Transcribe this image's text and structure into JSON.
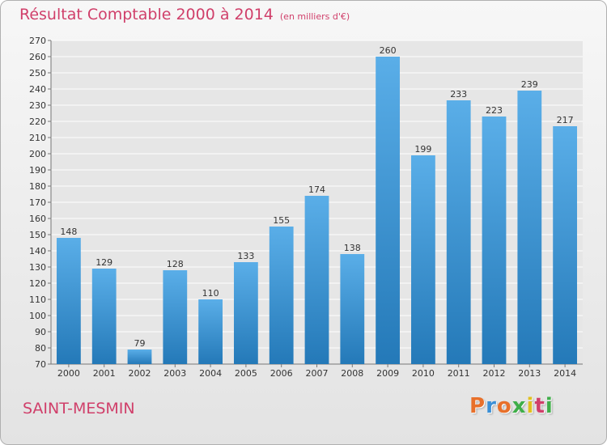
{
  "title": "Résultat Comptable 2000 à 2014",
  "unit": "(en milliers d'€)",
  "commune": "SAINT-MESMIN",
  "logo_text": "Proxiti",
  "colors": {
    "title": "#d03f6a",
    "bar_light": "#5aaee8",
    "bar_dark": "#2479b8"
  },
  "chart_data": {
    "type": "bar",
    "title": "Résultat Comptable 2000 à 2014",
    "ylabel": "",
    "xlabel": "",
    "categories": [
      "2000",
      "2001",
      "2002",
      "2003",
      "2004",
      "2005",
      "2006",
      "2007",
      "2008",
      "2009",
      "2010",
      "2011",
      "2012",
      "2013",
      "2014"
    ],
    "values": [
      148,
      129,
      79,
      128,
      110,
      133,
      155,
      174,
      138,
      260,
      199,
      233,
      223,
      239,
      217
    ],
    "ylim": [
      70,
      270
    ],
    "ytick_step": 10,
    "grid": true
  }
}
